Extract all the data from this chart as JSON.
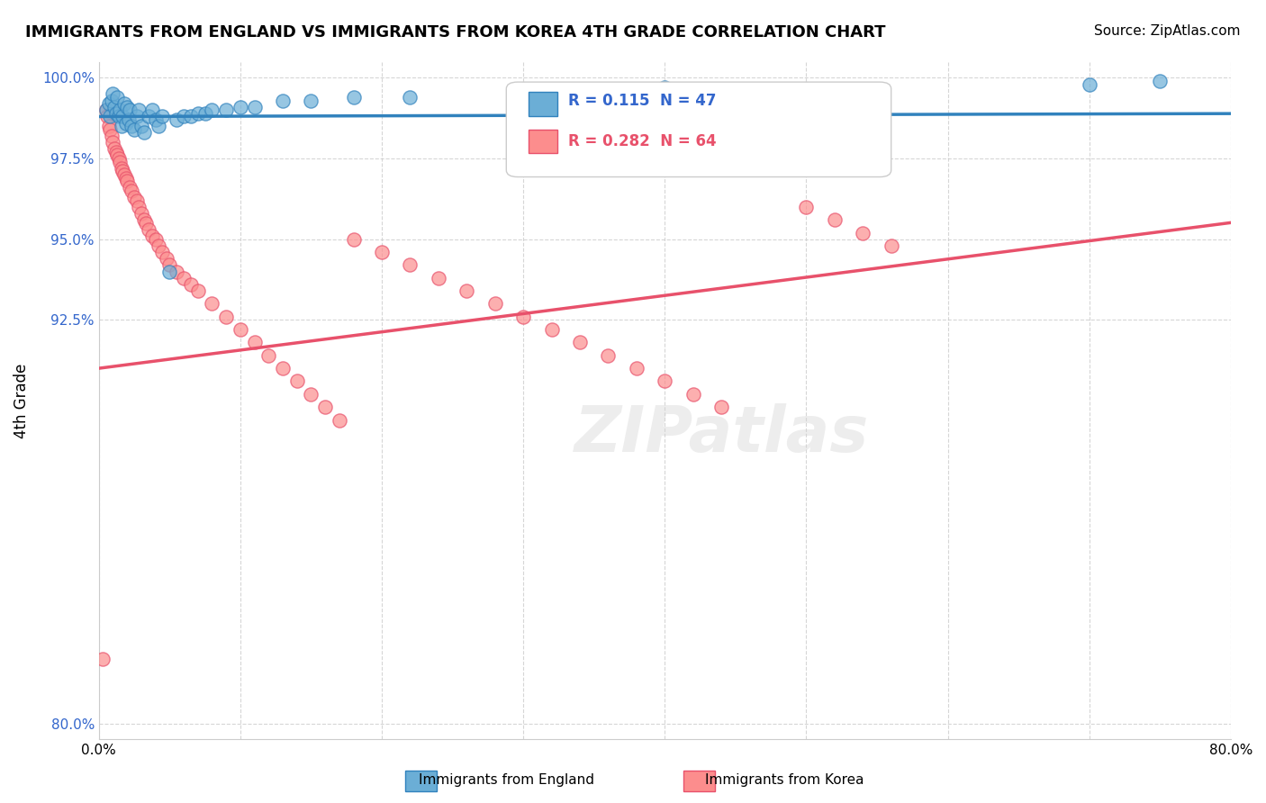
{
  "title": "IMMIGRANTS FROM ENGLAND VS IMMIGRANTS FROM KOREA 4TH GRADE CORRELATION CHART",
  "source": "Source: ZipAtlas.com",
  "xlabel_bottom": "",
  "ylabel": "4th Grade",
  "legend_england": "Immigrants from England",
  "legend_korea": "Immigrants from Korea",
  "R_england": 0.115,
  "N_england": 47,
  "R_korea": 0.282,
  "N_korea": 64,
  "xlim": [
    0.0,
    0.8
  ],
  "ylim": [
    0.795,
    1.005
  ],
  "xticks": [
    0.0,
    0.1,
    0.2,
    0.3,
    0.4,
    0.5,
    0.6,
    0.7,
    0.8
  ],
  "xticklabels": [
    "0.0%",
    "",
    "",
    "",
    "",
    "",
    "",
    "",
    "80.0%"
  ],
  "yticks": [
    0.8,
    0.925,
    0.95,
    0.975,
    1.0
  ],
  "yticklabels": [
    "80.0%",
    "92.5%",
    "95.0%",
    "97.5%",
    "100.0%"
  ],
  "color_england": "#6baed6",
  "color_korea": "#fc8d8d",
  "color_england_line": "#3182bd",
  "color_korea_line": "#e8516b",
  "watermark": "ZIPatlas",
  "england_x": [
    0.005,
    0.007,
    0.008,
    0.009,
    0.01,
    0.011,
    0.012,
    0.013,
    0.014,
    0.015,
    0.016,
    0.017,
    0.018,
    0.019,
    0.02,
    0.021,
    0.022,
    0.023,
    0.025,
    0.027,
    0.028,
    0.03,
    0.032,
    0.035,
    0.038,
    0.04,
    0.042,
    0.045,
    0.05,
    0.055,
    0.06,
    0.065,
    0.07,
    0.075,
    0.08,
    0.09,
    0.1,
    0.11,
    0.13,
    0.15,
    0.18,
    0.22,
    0.3,
    0.35,
    0.4,
    0.7,
    0.75
  ],
  "england_y": [
    0.99,
    0.992,
    0.988,
    0.993,
    0.995,
    0.991,
    0.989,
    0.994,
    0.988,
    0.99,
    0.985,
    0.988,
    0.992,
    0.986,
    0.991,
    0.987,
    0.99,
    0.985,
    0.984,
    0.988,
    0.99,
    0.985,
    0.983,
    0.988,
    0.99,
    0.987,
    0.985,
    0.988,
    0.94,
    0.987,
    0.988,
    0.988,
    0.989,
    0.989,
    0.99,
    0.99,
    0.991,
    0.991,
    0.993,
    0.993,
    0.994,
    0.994,
    0.975,
    0.996,
    0.997,
    0.998,
    0.999
  ],
  "korea_x": [
    0.003,
    0.005,
    0.006,
    0.007,
    0.008,
    0.009,
    0.01,
    0.011,
    0.012,
    0.013,
    0.014,
    0.015,
    0.016,
    0.017,
    0.018,
    0.019,
    0.02,
    0.022,
    0.023,
    0.025,
    0.027,
    0.028,
    0.03,
    0.032,
    0.033,
    0.035,
    0.038,
    0.04,
    0.042,
    0.045,
    0.048,
    0.05,
    0.055,
    0.06,
    0.065,
    0.07,
    0.08,
    0.09,
    0.1,
    0.11,
    0.12,
    0.13,
    0.14,
    0.15,
    0.16,
    0.17,
    0.18,
    0.2,
    0.22,
    0.24,
    0.26,
    0.28,
    0.3,
    0.32,
    0.34,
    0.36,
    0.38,
    0.4,
    0.42,
    0.44,
    0.5,
    0.52,
    0.54,
    0.56
  ],
  "korea_y": [
    0.82,
    0.99,
    0.988,
    0.985,
    0.984,
    0.982,
    0.98,
    0.978,
    0.977,
    0.976,
    0.975,
    0.974,
    0.972,
    0.971,
    0.97,
    0.969,
    0.968,
    0.966,
    0.965,
    0.963,
    0.962,
    0.96,
    0.958,
    0.956,
    0.955,
    0.953,
    0.951,
    0.95,
    0.948,
    0.946,
    0.944,
    0.942,
    0.94,
    0.938,
    0.936,
    0.934,
    0.93,
    0.926,
    0.922,
    0.918,
    0.914,
    0.91,
    0.906,
    0.902,
    0.898,
    0.894,
    0.95,
    0.946,
    0.942,
    0.938,
    0.934,
    0.93,
    0.926,
    0.922,
    0.918,
    0.914,
    0.91,
    0.906,
    0.902,
    0.898,
    0.96,
    0.956,
    0.952,
    0.948
  ]
}
